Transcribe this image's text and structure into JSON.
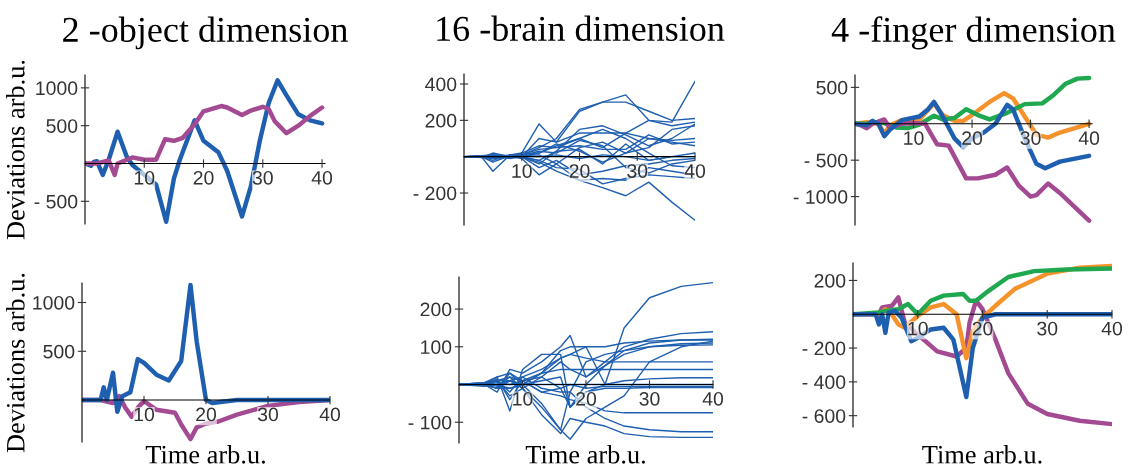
{
  "chart_data": [
    {
      "type": "line",
      "title": "2 -object dimension",
      "ylabel": "Deviations arb.u.",
      "xlim": [
        0,
        40.5
      ],
      "ylim": [
        -800,
        1170
      ],
      "xticks": [
        10,
        20,
        30,
        40
      ],
      "yticks": [
        1000,
        500,
        {
          "value": -500,
          "label": "- 500"
        }
      ],
      "grid": false,
      "series": [
        {
          "color": "#1f5fb0",
          "x": [
            0,
            1,
            1.5,
            2,
            3,
            4,
            5.5,
            7,
            8,
            10,
            12,
            13.7,
            15,
            16,
            18.5,
            20,
            22.5,
            24,
            26.5,
            28,
            29.5,
            31,
            32.5,
            34,
            36,
            38,
            40
          ],
          "values": [
            0,
            -30,
            20,
            30,
            -150,
            50,
            420,
            100,
            -20,
            -150,
            -280,
            -770,
            -200,
            50,
            570,
            300,
            150,
            -100,
            -700,
            -300,
            300,
            800,
            1100,
            900,
            650,
            570,
            530
          ]
        },
        {
          "color": "#a44a92",
          "x": [
            0,
            2,
            4,
            5,
            5.5,
            8,
            10,
            12,
            13.5,
            15,
            16.5,
            18.5,
            20,
            23,
            24,
            26.5,
            28,
            30,
            31,
            32,
            34,
            36,
            38,
            40
          ],
          "values": [
            0,
            0,
            40,
            -150,
            0,
            80,
            50,
            50,
            320,
            300,
            340,
            520,
            690,
            760,
            740,
            640,
            700,
            750,
            720,
            560,
            400,
            500,
            630,
            740
          ]
        }
      ]
    },
    {
      "type": "line",
      "title": "16 -brain dimension",
      "x": [
        0,
        3,
        5,
        8,
        10,
        13,
        16,
        20,
        24,
        28,
        32,
        36,
        40
      ],
      "xlim": [
        0,
        40
      ],
      "ylim": [
        -376,
        455
      ],
      "xticks": [
        10,
        20,
        30,
        40
      ],
      "yticks": [
        400,
        200,
        {
          "value": -200,
          "label": "- 200"
        }
      ],
      "grid": false,
      "series": [
        {
          "color": "#1f5fb0",
          "values": [
            0,
            5,
            -5,
            10,
            20,
            180,
            80,
            250,
            300,
            340,
            200,
            190,
            415
          ]
        },
        {
          "color": "#1f5fb0",
          "values": [
            0,
            0,
            10,
            5,
            10,
            50,
            100,
            260,
            300,
            300,
            250,
            200,
            210
          ]
        },
        {
          "color": "#1f5fb0",
          "values": [
            0,
            0,
            -10,
            5,
            0,
            -40,
            30,
            150,
            170,
            120,
            60,
            100,
            180
          ]
        },
        {
          "color": "#1f5fb0",
          "values": [
            0,
            0,
            5,
            0,
            10,
            20,
            60,
            100,
            50,
            130,
            200,
            170,
            190
          ]
        },
        {
          "color": "#1f5fb0",
          "values": [
            0,
            0,
            -80,
            10,
            0,
            100,
            80,
            130,
            130,
            130,
            100,
            90,
            100
          ]
        },
        {
          "color": "#1f5fb0",
          "values": [
            0,
            5,
            10,
            0,
            20,
            60,
            50,
            60,
            40,
            40,
            120,
            70,
            80
          ]
        },
        {
          "color": "#1f5fb0",
          "values": [
            0,
            -5,
            20,
            0,
            -10,
            -100,
            -40,
            50,
            80,
            20,
            100,
            80,
            60
          ]
        },
        {
          "color": "#1f5fb0",
          "values": [
            0,
            0,
            5,
            -10,
            0,
            20,
            70,
            30,
            -30,
            20,
            50,
            150,
            170
          ]
        },
        {
          "color": "#1f5fb0",
          "values": [
            0,
            0,
            0,
            5,
            -5,
            -20,
            30,
            40,
            -40,
            70,
            -20,
            0,
            20
          ]
        },
        {
          "color": "#1f5fb0",
          "values": [
            0,
            0,
            -20,
            10,
            0,
            -60,
            -20,
            -100,
            -80,
            -50,
            -40,
            -20,
            -10
          ]
        },
        {
          "color": "#1f5fb0",
          "values": [
            0,
            0,
            5,
            0,
            5,
            10,
            -40,
            -130,
            -120,
            -130,
            -60,
            -80,
            -100
          ]
        },
        {
          "color": "#1f5fb0",
          "values": [
            0,
            0,
            -30,
            5,
            0,
            -20,
            -60,
            -70,
            -150,
            -120,
            -100,
            -110,
            -120
          ]
        },
        {
          "color": "#1f5fb0",
          "values": [
            0,
            0,
            10,
            0,
            -5,
            -30,
            -80,
            -130,
            -170,
            -215,
            -140,
            -250,
            -350
          ]
        },
        {
          "color": "#1f5fb0",
          "values": [
            0,
            0,
            -10,
            0,
            5,
            30,
            20,
            90,
            60,
            -60,
            -90,
            -40,
            -20
          ]
        },
        {
          "color": "#1f5fb0",
          "values": [
            0,
            0,
            0,
            0,
            10,
            40,
            50,
            100,
            150,
            100,
            20,
            -50,
            -60
          ]
        },
        {
          "color": "#1f5fb0",
          "values": [
            0,
            5,
            5,
            5,
            0,
            0,
            10,
            -10,
            10,
            0,
            -20,
            0,
            0
          ]
        }
      ]
    },
    {
      "type": "line",
      "title": "4 -finger dimension",
      "xlim": [
        0,
        40.5
      ],
      "ylim": [
        -1390,
        670
      ],
      "xticks": [
        10,
        20,
        30,
        40
      ],
      "yticks": [
        500,
        {
          "value": -500,
          "label": "- 500"
        },
        {
          "value": -1000,
          "label": "- 1000"
        }
      ],
      "grid": false,
      "series": [
        {
          "color": "#f5922b",
          "x": [
            0,
            2,
            4,
            5,
            6,
            8,
            11,
            13.5,
            15,
            17,
            18.5,
            20,
            23,
            25.5,
            27,
            29,
            31,
            33,
            35,
            40
          ],
          "values": [
            0,
            20,
            0,
            -130,
            -20,
            50,
            60,
            280,
            120,
            40,
            40,
            120,
            300,
            420,
            350,
            100,
            -150,
            -190,
            -120,
            0
          ]
        },
        {
          "color": "#1fa84f",
          "x": [
            0,
            2,
            3,
            5,
            7,
            9,
            11,
            13.5,
            15,
            17,
            19,
            21,
            23,
            26,
            29,
            32,
            34,
            36,
            38,
            40
          ],
          "values": [
            0,
            0,
            20,
            10,
            -50,
            -60,
            -10,
            110,
            60,
            80,
            200,
            120,
            60,
            150,
            270,
            280,
            400,
            550,
            620,
            630
          ]
        },
        {
          "color": "#a44a92",
          "x": [
            0,
            1,
            2,
            3,
            5,
            6,
            8,
            10,
            12,
            14,
            16,
            19,
            21,
            24,
            26,
            28,
            30,
            31,
            33,
            35,
            40
          ],
          "values": [
            0,
            -20,
            -60,
            0,
            60,
            -60,
            0,
            10,
            0,
            -280,
            -300,
            -750,
            -750,
            -700,
            -600,
            -850,
            -1000,
            -980,
            -820,
            -950,
            -1330
          ]
        },
        {
          "color": "#1f5fb0",
          "x": [
            0,
            2,
            3,
            4,
            5,
            6,
            8,
            11,
            12.5,
            13.5,
            15,
            17,
            18.5,
            20,
            22,
            24,
            26,
            27,
            29,
            31,
            32.5,
            35,
            40
          ],
          "values": [
            0,
            -20,
            40,
            0,
            -170,
            -80,
            50,
            100,
            200,
            300,
            100,
            -200,
            -320,
            -200,
            -120,
            0,
            260,
            200,
            -200,
            -550,
            -610,
            -520,
            -440
          ]
        }
      ]
    },
    {
      "type": "line",
      "xlabel": "Time arb.u.",
      "ylabel": "Deviations arb.u.",
      "xlim": [
        0,
        40
      ],
      "ylim": [
        -430,
        1200
      ],
      "xticks": [
        10,
        20,
        30,
        40
      ],
      "yticks": [
        1000,
        500
      ],
      "grid": false,
      "series": [
        {
          "color": "#a44a92",
          "x": [
            0,
            3,
            5,
            6,
            7,
            8,
            9,
            10,
            12,
            15,
            16,
            17.5,
            18.5,
            20,
            22,
            25,
            30,
            35,
            40
          ],
          "values": [
            0,
            0,
            -30,
            40,
            -80,
            -170,
            -80,
            -10,
            -100,
            -130,
            -250,
            -400,
            -280,
            -240,
            -220,
            -150,
            -60,
            -20,
            0
          ]
        },
        {
          "color": "#1f5fb0",
          "x": [
            0,
            3,
            3.5,
            4,
            5,
            5.7,
            6.5,
            7.8,
            9,
            10,
            12,
            14,
            16,
            17.5,
            18.5,
            20,
            21,
            25,
            40
          ],
          "values": [
            0,
            0,
            130,
            0,
            280,
            -120,
            40,
            80,
            420,
            380,
            260,
            200,
            400,
            1180,
            600,
            0,
            -30,
            0,
            0
          ]
        }
      ]
    },
    {
      "type": "line",
      "xlabel": "Time arb.u.",
      "x": [
        0,
        4,
        6,
        8,
        10,
        13,
        16,
        17.5,
        20,
        23,
        26,
        30,
        35,
        40
      ],
      "xlim": [
        0,
        40
      ],
      "ylim": [
        -155,
        285
      ],
      "xticks": [
        10,
        20,
        30,
        40
      ],
      "yticks": [
        200,
        100,
        {
          "value": -100,
          "label": "- 100"
        }
      ],
      "grid": false,
      "series": [
        {
          "color": "#1f5fb0",
          "values": [
            0,
            0,
            10,
            -20,
            20,
            40,
            70,
            80,
            100,
            0,
            150,
            230,
            260,
            270
          ]
        },
        {
          "color": "#1f5fb0",
          "values": [
            0,
            0,
            -20,
            40,
            30,
            60,
            100,
            130,
            20,
            60,
            100,
            120,
            135,
            140
          ]
        },
        {
          "color": "#1f5fb0",
          "values": [
            0,
            5,
            20,
            -70,
            40,
            80,
            80,
            -60,
            0,
            50,
            90,
            110,
            118,
            120
          ]
        },
        {
          "color": "#1f5fb0",
          "values": [
            0,
            0,
            -10,
            30,
            0,
            30,
            90,
            100,
            100,
            100,
            110,
            115,
            118,
            118
          ]
        },
        {
          "color": "#1f5fb0",
          "values": [
            0,
            5,
            10,
            20,
            -10,
            -60,
            -120,
            -145,
            -90,
            -60,
            -30,
            60,
            100,
            115
          ]
        },
        {
          "color": "#1f5fb0",
          "values": [
            0,
            0,
            15,
            -40,
            10,
            20,
            60,
            40,
            20,
            50,
            80,
            100,
            108,
            110
          ]
        },
        {
          "color": "#1f5fb0",
          "values": [
            0,
            0,
            -10,
            10,
            20,
            -10,
            -20,
            -20,
            60,
            80,
            90,
            100,
            104,
            105
          ]
        },
        {
          "color": "#1f5fb0",
          "values": [
            0,
            0,
            5,
            0,
            10,
            30,
            70,
            80,
            70,
            60,
            60,
            60,
            60,
            60
          ]
        },
        {
          "color": "#1f5fb0",
          "values": [
            0,
            -5,
            0,
            10,
            0,
            30,
            40,
            40,
            40,
            40,
            40,
            40,
            40,
            40
          ]
        },
        {
          "color": "#1f5fb0",
          "values": [
            0,
            0,
            10,
            -30,
            -10,
            20,
            -10,
            -60,
            -20,
            0,
            10,
            15,
            18,
            18
          ]
        },
        {
          "color": "#1f5fb0",
          "values": [
            0,
            5,
            -5,
            20,
            10,
            -20,
            -10,
            0,
            -10,
            -5,
            -5,
            -5,
            -5,
            -5
          ]
        },
        {
          "color": "#1f5fb0",
          "values": [
            0,
            0,
            0,
            -10,
            0,
            10,
            20,
            -60,
            -20,
            -10,
            -10,
            -8,
            -8,
            -8
          ]
        },
        {
          "color": "#1f5fb0",
          "values": [
            0,
            0,
            20,
            30,
            10,
            -20,
            -30,
            -40,
            -50,
            -70,
            -75,
            -75,
            -75,
            -75
          ]
        },
        {
          "color": "#1f5fb0",
          "values": [
            0,
            0,
            -10,
            -10,
            0,
            -50,
            -120,
            -20,
            -60,
            -90,
            -110,
            -120,
            -125,
            -125
          ]
        },
        {
          "color": "#1f5fb0",
          "values": [
            0,
            0,
            10,
            10,
            -10,
            -80,
            -130,
            -90,
            -100,
            -110,
            -130,
            -138,
            -140,
            -140
          ]
        },
        {
          "color": "#1f5fb0",
          "values": [
            0,
            0,
            0,
            0,
            0,
            0,
            0,
            0,
            0,
            0,
            0,
            0,
            0,
            0
          ]
        }
      ]
    },
    {
      "type": "line",
      "xlabel": "Time arb.u.",
      "xlim": [
        0,
        40
      ],
      "ylim": [
        -667,
        303
      ],
      "xticks": [
        10,
        20,
        30,
        40
      ],
      "yticks": [
        200,
        {
          "value": -200,
          "label": "- 200"
        },
        {
          "value": -400,
          "label": "- 400"
        },
        {
          "value": -600,
          "label": "- 600"
        }
      ],
      "grid": false,
      "series": [
        {
          "color": "#a44a92",
          "x": [
            0,
            4,
            4.5,
            6,
            7,
            8,
            10,
            13,
            16,
            17.5,
            18,
            19,
            20,
            22,
            24,
            27,
            30,
            35,
            40
          ],
          "values": [
            0,
            0,
            40,
            50,
            100,
            -50,
            -120,
            -220,
            -250,
            -200,
            -50,
            80,
            30,
            -150,
            -350,
            -530,
            -590,
            -630,
            -650
          ]
        },
        {
          "color": "#f5922b",
          "x": [
            0,
            4,
            5,
            6,
            7,
            8,
            10,
            12,
            14,
            16,
            17.5,
            18.5,
            20,
            22,
            25,
            30,
            35,
            40
          ],
          "values": [
            0,
            0,
            30,
            0,
            -60,
            -80,
            -10,
            40,
            60,
            0,
            -260,
            -100,
            -20,
            50,
            150,
            240,
            275,
            285
          ]
        },
        {
          "color": "#1fa84f",
          "x": [
            0,
            4,
            5,
            7,
            8.5,
            10,
            12,
            14,
            17,
            18,
            19,
            21,
            24,
            28,
            33,
            40
          ],
          "values": [
            0,
            10,
            20,
            30,
            60,
            0,
            80,
            110,
            120,
            80,
            80,
            140,
            220,
            255,
            265,
            270
          ]
        },
        {
          "color": "#1f5fb0",
          "x": [
            0,
            3.5,
            4,
            4.5,
            5,
            5.5,
            6.5,
            7.5,
            9,
            10,
            12,
            14,
            15.5,
            17.5,
            18.5,
            20,
            22,
            40
          ],
          "values": [
            0,
            0,
            -60,
            0,
            -110,
            10,
            20,
            -20,
            -160,
            -140,
            -90,
            -80,
            -150,
            -490,
            -200,
            -20,
            0,
            0
          ]
        }
      ]
    }
  ]
}
